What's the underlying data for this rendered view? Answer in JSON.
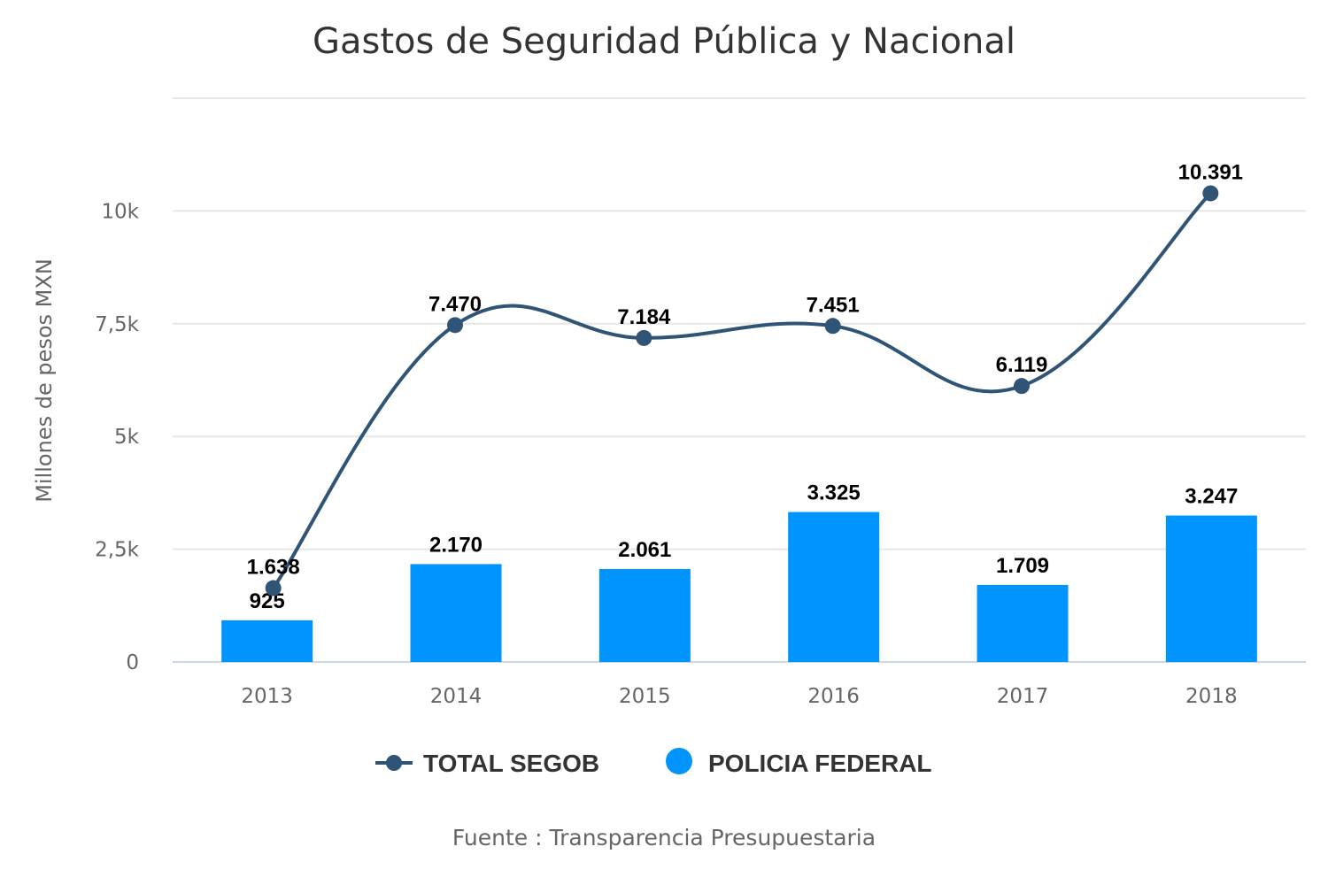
{
  "chart_data": {
    "type": "bar",
    "title": "Gastos de Seguridad Pública y Nacional",
    "xlabel": "",
    "ylabel": "Millones de pesos MXN",
    "categories": [
      "2013",
      "2014",
      "2015",
      "2016",
      "2017",
      "2018"
    ],
    "ylim": [
      0,
      12500
    ],
    "yticks": [
      0,
      2500,
      5000,
      7500,
      10000,
      12500
    ],
    "ytick_labels": [
      "0",
      "2,5k",
      "5k",
      "7,5k",
      "10k",
      ""
    ],
    "grid": true,
    "legend_position": "bottom-center",
    "series": [
      {
        "name": "TOTAL SEGOB",
        "type": "spline",
        "color": "#2f5475",
        "values": [
          1638,
          7470,
          7184,
          7451,
          6119,
          10391
        ],
        "labels": [
          "1.638",
          "7.470",
          "7.184",
          "7.451",
          "6.119",
          "10.391"
        ]
      },
      {
        "name": "POLICIA FEDERAL",
        "type": "column",
        "color": "#0094ff",
        "values": [
          925,
          2170,
          2061,
          3325,
          1709,
          3247
        ],
        "labels": [
          "925",
          "2.170",
          "2.061",
          "3.325",
          "1.709",
          "3.247"
        ]
      }
    ],
    "credit": "Fuente : Transparencia Presupuestaria"
  }
}
